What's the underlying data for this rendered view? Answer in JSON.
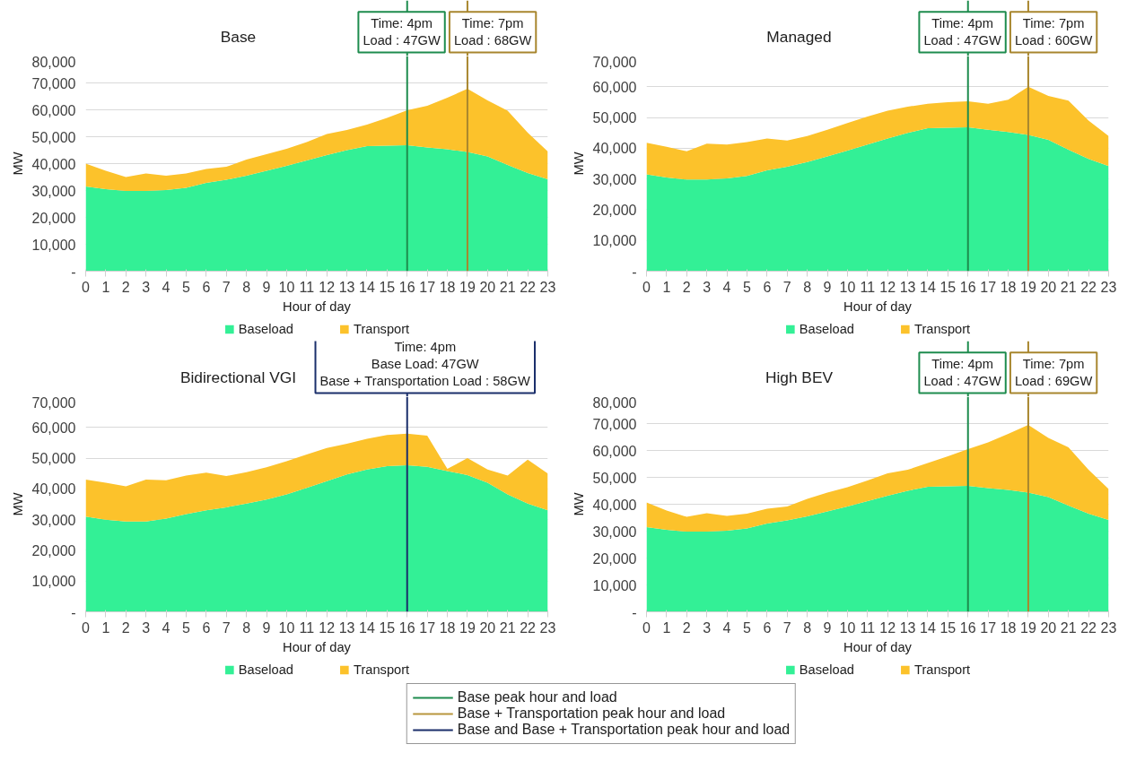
{
  "chart_data": [
    {
      "type": "area",
      "title": "Base",
      "xlabel": "Hour of day",
      "ylabel": "MW",
      "stacked": true,
      "grid": "y",
      "legend": "bottom",
      "x": [
        0,
        1,
        2,
        3,
        4,
        5,
        6,
        7,
        8,
        9,
        10,
        11,
        12,
        13,
        14,
        15,
        16,
        17,
        18,
        19,
        20,
        21,
        22,
        23
      ],
      "xlim": [
        0,
        23
      ],
      "xticks": [
        0,
        1,
        2,
        3,
        4,
        5,
        6,
        7,
        8,
        9,
        10,
        11,
        12,
        13,
        14,
        15,
        16,
        17,
        18,
        19,
        20,
        21,
        22,
        23
      ],
      "ylim": [
        0,
        80000
      ],
      "yticks": [
        {
          "value": 0,
          "label": "-"
        },
        {
          "value": 10000,
          "label": "10,000"
        },
        {
          "value": 20000,
          "label": "20,000"
        },
        {
          "value": 30000,
          "label": "30,000"
        },
        {
          "value": 40000,
          "label": "40,000"
        },
        {
          "value": 50000,
          "label": "50,000"
        },
        {
          "value": 60000,
          "label": "60,000"
        },
        {
          "value": 70000,
          "label": "70,000"
        },
        {
          "value": 80000,
          "label": "80,000"
        }
      ],
      "series": [
        {
          "name": "Baseload",
          "color": "#33f096",
          "values": [
            31500,
            30500,
            29800,
            29800,
            30200,
            31000,
            32800,
            34000,
            35500,
            37300,
            39200,
            41200,
            43200,
            45000,
            46500,
            46700,
            46800,
            46000,
            45300,
            44300,
            42700,
            39500,
            36500,
            34200
          ]
        },
        {
          "name": "Transport",
          "color": "#fcc22b",
          "values": [
            8500,
            6800,
            5200,
            6500,
            5300,
            5300,
            5200,
            4800,
            6000,
            6200,
            6300,
            6800,
            7800,
            7500,
            8000,
            10300,
            13000,
            15500,
            19200,
            23500,
            20800,
            20200,
            15000,
            10300
          ]
        }
      ],
      "ref_lines": [
        {
          "axis": "x",
          "value": 16,
          "color": "#1e8c4e"
        },
        {
          "axis": "x",
          "value": 19,
          "color": "#a8862e"
        }
      ],
      "annotations": [
        "Time: 4pm\nLoad : 47GW",
        "Time: 7pm\nLoad : 68GW"
      ]
    },
    {
      "type": "area",
      "title": "Managed",
      "xlabel": "Hour of day",
      "ylabel": "MW",
      "stacked": true,
      "grid": "y",
      "legend": "bottom",
      "x": [
        0,
        1,
        2,
        3,
        4,
        5,
        6,
        7,
        8,
        9,
        10,
        11,
        12,
        13,
        14,
        15,
        16,
        17,
        18,
        19,
        20,
        21,
        22,
        23
      ],
      "xlim": [
        0,
        23
      ],
      "xticks": [
        0,
        1,
        2,
        3,
        4,
        5,
        6,
        7,
        8,
        9,
        10,
        11,
        12,
        13,
        14,
        15,
        16,
        17,
        18,
        19,
        20,
        21,
        22,
        23
      ],
      "ylim": [
        0,
        70000
      ],
      "yticks": [
        {
          "value": 0,
          "label": "-"
        },
        {
          "value": 10000,
          "label": "10,000"
        },
        {
          "value": 20000,
          "label": "20,000"
        },
        {
          "value": 30000,
          "label": "30,000"
        },
        {
          "value": 40000,
          "label": "40,000"
        },
        {
          "value": 50000,
          "label": "50,000"
        },
        {
          "value": 60000,
          "label": "60,000"
        },
        {
          "value": 70000,
          "label": "70,000"
        }
      ],
      "series": [
        {
          "name": "Baseload",
          "color": "#33f096",
          "values": [
            31500,
            30500,
            29800,
            29800,
            30200,
            31000,
            32800,
            34000,
            35500,
            37300,
            39200,
            41200,
            43200,
            45000,
            46500,
            46700,
            46800,
            46000,
            45300,
            44300,
            42700,
            39500,
            36500,
            34200
          ]
        },
        {
          "name": "Transport",
          "color": "#fcc22b",
          "values": [
            10300,
            10000,
            9200,
            11700,
            11000,
            11000,
            10400,
            8500,
            8500,
            8700,
            9000,
            9100,
            9000,
            8500,
            8000,
            8300,
            8500,
            8500,
            10500,
            15700,
            14300,
            16000,
            12500,
            9800
          ]
        }
      ],
      "ref_lines": [
        {
          "axis": "x",
          "value": 16,
          "color": "#1e8c4e"
        },
        {
          "axis": "x",
          "value": 19,
          "color": "#a8862e"
        }
      ],
      "annotations": [
        "Time: 4pm\nLoad : 47GW",
        "Time: 7pm\nLoad : 60GW"
      ]
    },
    {
      "type": "area",
      "title": "Bidirectional VGI",
      "xlabel": "Hour of day",
      "ylabel": "MW",
      "stacked": true,
      "grid": "y",
      "legend": "bottom",
      "x": [
        0,
        1,
        2,
        3,
        4,
        5,
        6,
        7,
        8,
        9,
        10,
        11,
        12,
        13,
        14,
        15,
        16,
        17,
        18,
        19,
        20,
        21,
        22,
        23
      ],
      "xlim": [
        0,
        23
      ],
      "xticks": [
        0,
        1,
        2,
        3,
        4,
        5,
        6,
        7,
        8,
        9,
        10,
        11,
        12,
        13,
        14,
        15,
        16,
        17,
        18,
        19,
        20,
        21,
        22,
        23
      ],
      "ylim": [
        0,
        70000
      ],
      "yticks": [
        {
          "value": 0,
          "label": "-"
        },
        {
          "value": 10000,
          "label": "10,000"
        },
        {
          "value": 20000,
          "label": "20,000"
        },
        {
          "value": 30000,
          "label": "30,000"
        },
        {
          "value": 40000,
          "label": "40,000"
        },
        {
          "value": 50000,
          "label": "50,000"
        },
        {
          "value": 60000,
          "label": "60,000"
        },
        {
          "value": 70000,
          "label": "70,000"
        }
      ],
      "series": [
        {
          "name": "Baseload",
          "color": "#33f096",
          "values": [
            31000,
            30000,
            29400,
            29400,
            30300,
            31800,
            33000,
            34000,
            35200,
            36500,
            38200,
            40300,
            42500,
            44700,
            46300,
            47400,
            47700,
            47200,
            45800,
            44500,
            42000,
            38200,
            35200,
            33000
          ]
        },
        {
          "name": "Transport",
          "color": "#fcc22b",
          "values": [
            12000,
            12000,
            11400,
            13600,
            12500,
            12500,
            12300,
            10200,
            10200,
            10500,
            10800,
            10900,
            10800,
            10000,
            10000,
            10100,
            10300,
            10100,
            700,
            5500,
            4300,
            6100,
            14300,
            12000
          ]
        }
      ],
      "ref_lines": [
        {
          "axis": "x",
          "value": 16,
          "color": "#1b2f6b"
        }
      ],
      "annotations": [
        "Time: 4pm\nBase Load: 47GW\nBase + Transportation Load : 58GW"
      ]
    },
    {
      "type": "area",
      "title": "High BEV",
      "xlabel": "Hour of day",
      "ylabel": "MW",
      "stacked": true,
      "grid": "y",
      "legend": "bottom",
      "x": [
        0,
        1,
        2,
        3,
        4,
        5,
        6,
        7,
        8,
        9,
        10,
        11,
        12,
        13,
        14,
        15,
        16,
        17,
        18,
        19,
        20,
        21,
        22,
        23
      ],
      "xlim": [
        0,
        23
      ],
      "xticks": [
        0,
        1,
        2,
        3,
        4,
        5,
        6,
        7,
        8,
        9,
        10,
        11,
        12,
        13,
        14,
        15,
        16,
        17,
        18,
        19,
        20,
        21,
        22,
        23
      ],
      "ylim": [
        0,
        80000
      ],
      "yticks": [
        {
          "value": 0,
          "label": "-"
        },
        {
          "value": 10000,
          "label": "10,000"
        },
        {
          "value": 20000,
          "label": "20,000"
        },
        {
          "value": 30000,
          "label": "30,000"
        },
        {
          "value": 40000,
          "label": "40,000"
        },
        {
          "value": 50000,
          "label": "50,000"
        },
        {
          "value": 60000,
          "label": "60,000"
        },
        {
          "value": 70000,
          "label": "70,000"
        },
        {
          "value": 80000,
          "label": "80,000"
        }
      ],
      "series": [
        {
          "name": "Baseload",
          "color": "#33f096",
          "values": [
            31500,
            30500,
            29800,
            29800,
            30200,
            31000,
            32800,
            34000,
            35500,
            37300,
            39200,
            41200,
            43200,
            45000,
            46500,
            46700,
            46800,
            46000,
            45300,
            44300,
            42700,
            39500,
            36500,
            34200
          ]
        },
        {
          "name": "Transport",
          "color": "#fcc22b",
          "values": [
            9200,
            7200,
            5500,
            6900,
            5500,
            5500,
            5500,
            5200,
            6500,
            7000,
            7100,
            7600,
            8300,
            7800,
            8800,
            11100,
            13700,
            17000,
            20900,
            25200,
            22000,
            21700,
            16300,
            11500
          ]
        }
      ],
      "ref_lines": [
        {
          "axis": "x",
          "value": 16,
          "color": "#1e8c4e"
        },
        {
          "axis": "x",
          "value": 19,
          "color": "#a8862e"
        }
      ],
      "annotations": [
        "Time: 4pm\nLoad : 47GW",
        "Time: 7pm\nLoad : 69GW"
      ]
    },
    {
      "type": "other",
      "legend": "left",
      "series": [
        {
          "name": "Base peak hour and load",
          "color": "#1e8c4e"
        },
        {
          "name": "Base + Transportation peak hour and load",
          "color": "#b8963e"
        },
        {
          "name": "Base and Base + Transportation peak hour and load",
          "color": "#1b2f6b"
        }
      ]
    }
  ]
}
